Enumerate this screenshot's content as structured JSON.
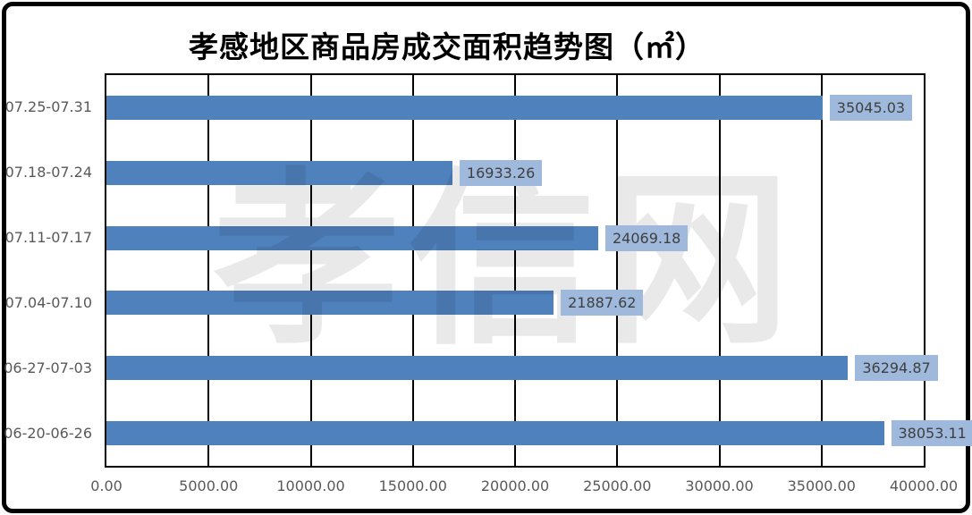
{
  "title": "孝感地区商品房成交面积趋势图（㎡）",
  "watermark": "孝信网",
  "chart_data": {
    "type": "bar",
    "orientation": "horizontal",
    "title": "孝感地区商品房成交面积趋势图（㎡）",
    "categories": [
      "07.25-07.31",
      "07.18-07.24",
      "07.11-07.17",
      "07.04-07.10",
      "06-27-07-03",
      "06-20-06-26"
    ],
    "values": [
      35045.03,
      16933.26,
      24069.18,
      21887.62,
      36294.87,
      38053.11
    ],
    "value_labels": [
      "35045.03",
      "16933.26",
      "24069.18",
      "21887.62",
      "36294.87",
      "38053.11"
    ],
    "xlabel": "",
    "ylabel": "",
    "xlim": [
      0,
      40000
    ],
    "x_tick_interval": 5000,
    "x_tick_labels": [
      "0.00",
      "5000.00",
      "10000.00",
      "15000.00",
      "20000.00",
      "25000.00",
      "30000.00",
      "35000.00",
      "40000.00"
    ],
    "grid": true,
    "legend": "none",
    "colors": {
      "bar": "#4F81BD",
      "value_label_bg": "#9FB9DC",
      "value_label_text": "#3F3F3F",
      "axis_text": "#595959",
      "gridline": "#000000",
      "plot_border": "#000000",
      "frame_border": "#000000",
      "background": "#FFFFFF"
    }
  }
}
